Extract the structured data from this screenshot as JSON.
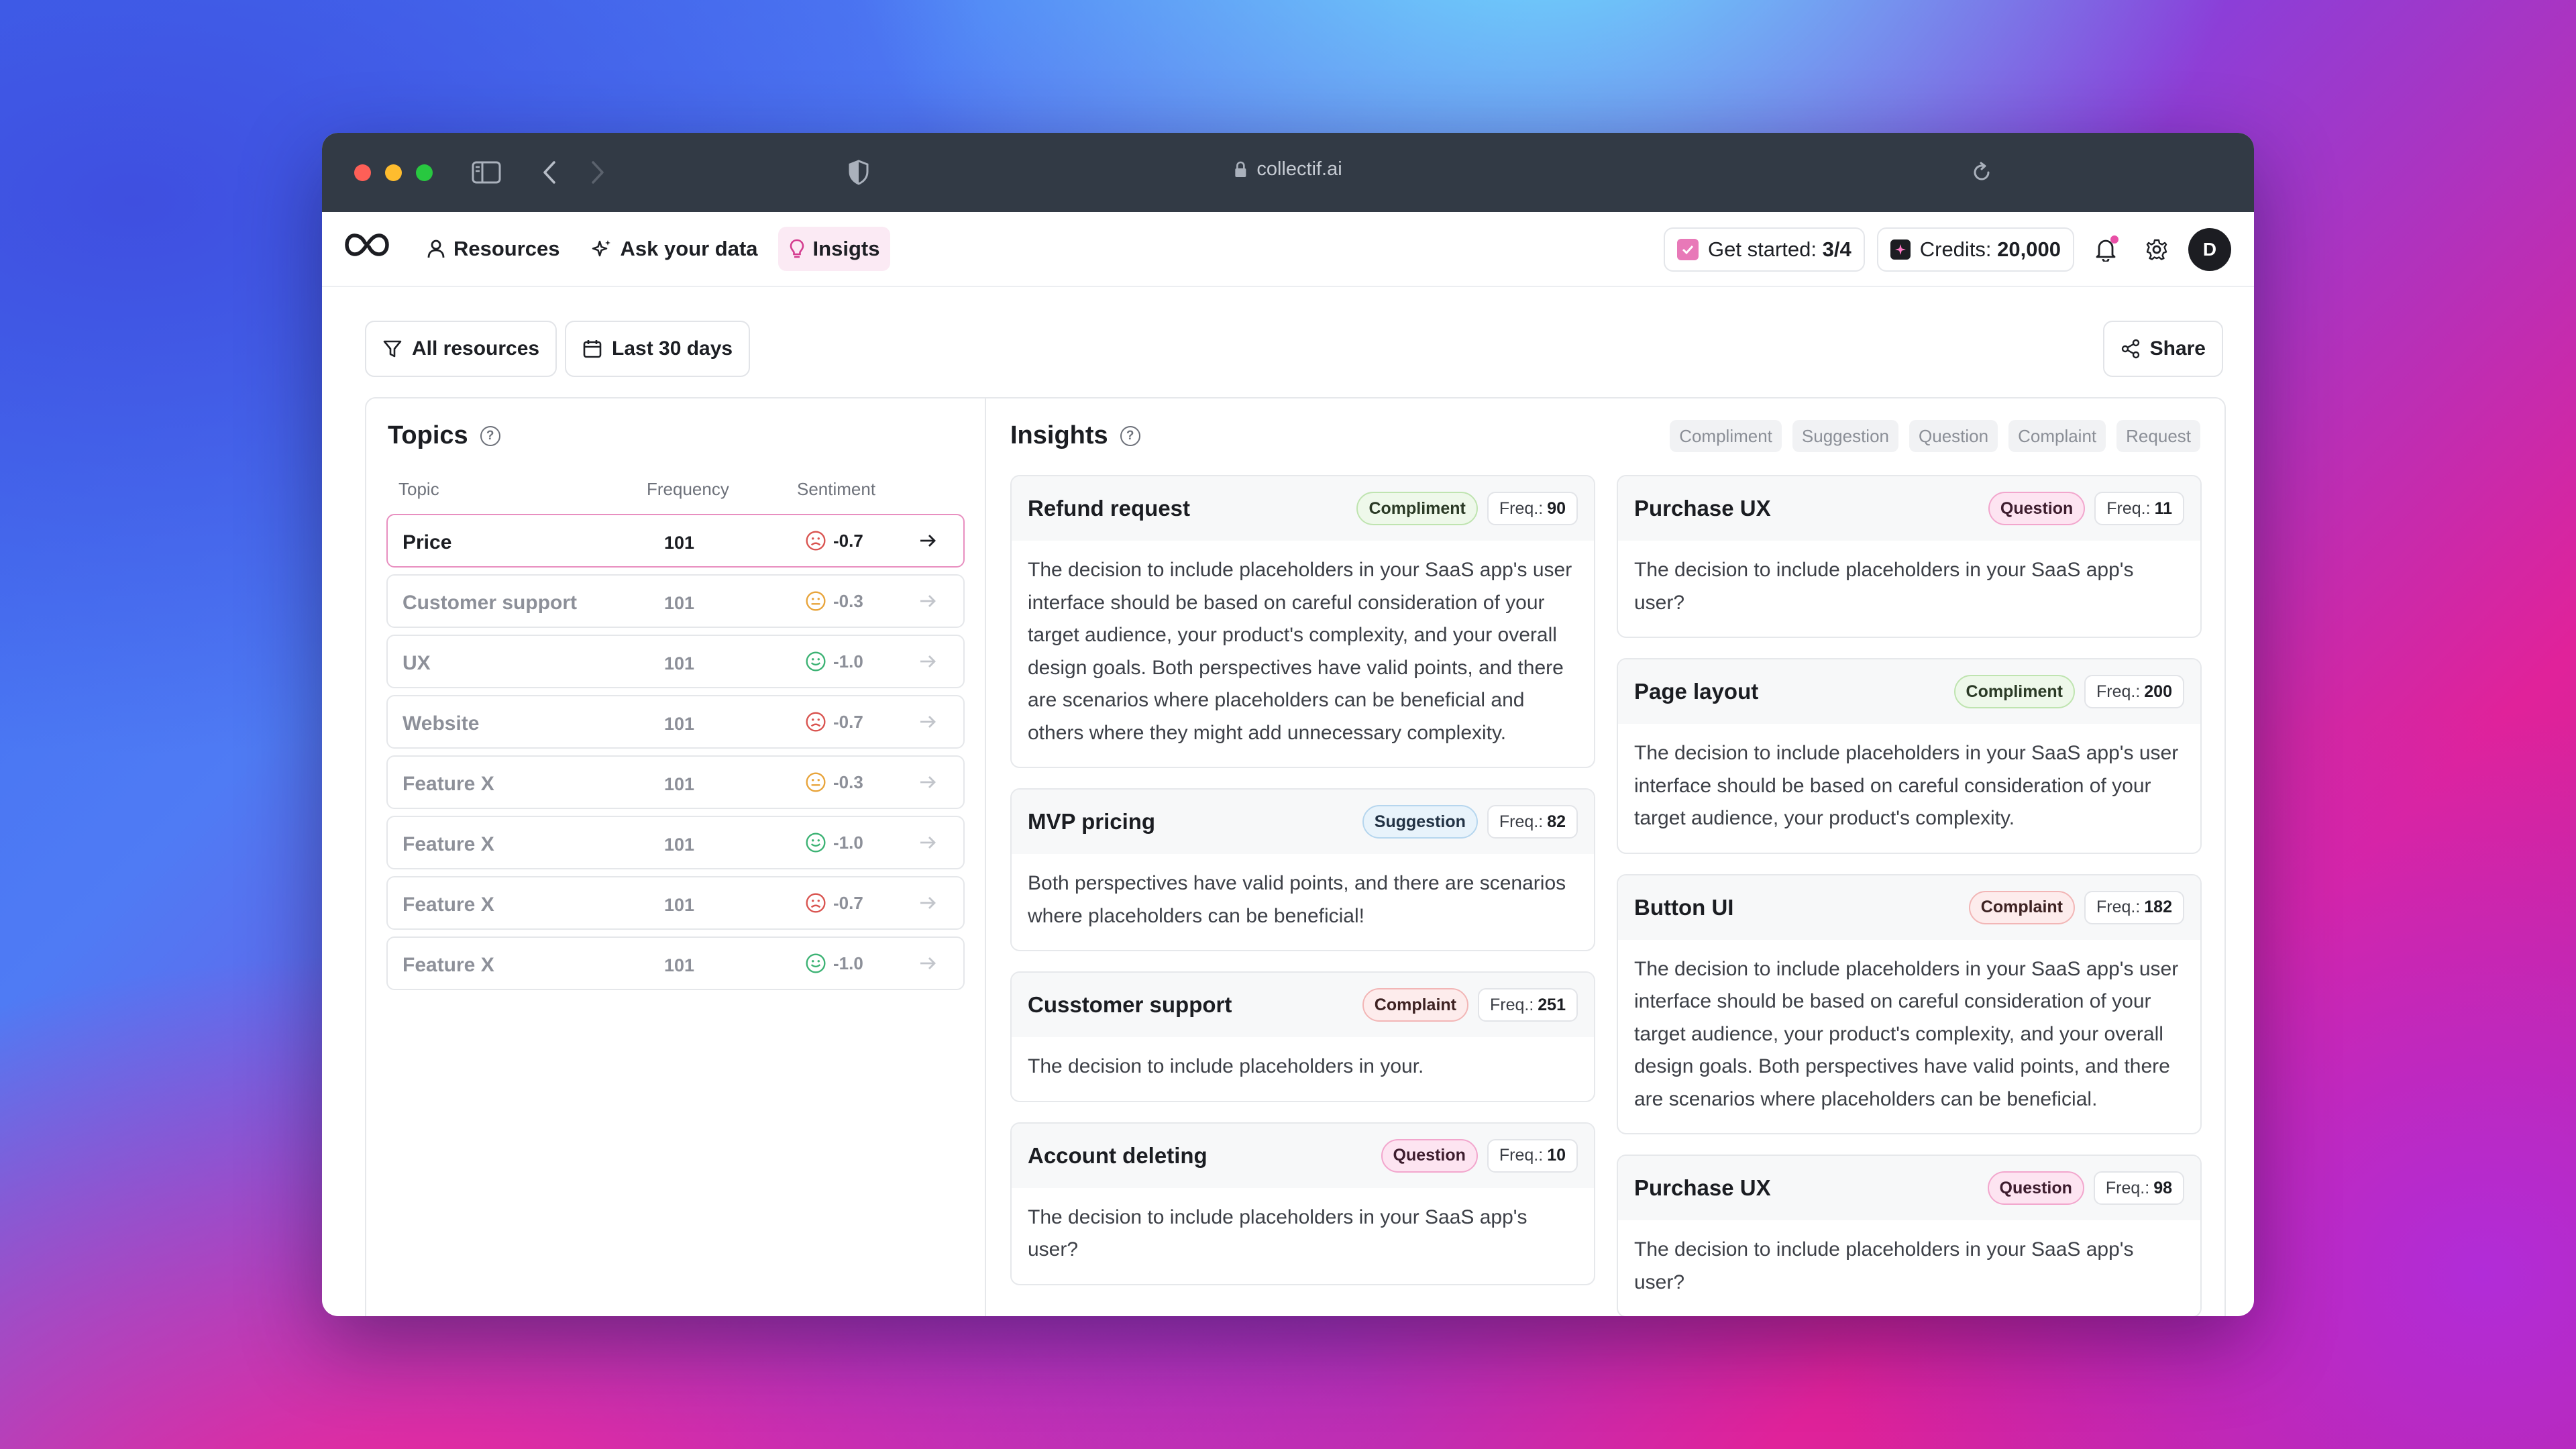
{
  "browser": {
    "url": "collectif.ai"
  },
  "nav": {
    "items": [
      {
        "label": "Resources",
        "icon": "user-icon"
      },
      {
        "label": "Ask your data",
        "icon": "sparkle-icon"
      },
      {
        "label": "Insigts",
        "icon": "lightbulb-icon",
        "active": true
      }
    ]
  },
  "header": {
    "get_started_label": "Get started:",
    "get_started_value": "3/4",
    "credits_label": "Credits:",
    "credits_value": "20,000",
    "avatar_initial": "D"
  },
  "toolbar": {
    "resources_filter": "All resources",
    "date_filter": "Last 30 days",
    "share_label": "Share"
  },
  "topics": {
    "title": "Topics",
    "columns": [
      "Topic",
      "Frequency",
      "Sentiment"
    ],
    "rows": [
      {
        "name": "Price",
        "frequency": "101",
        "sentiment": "-0.7",
        "mood": "negative",
        "selected": true
      },
      {
        "name": "Customer support",
        "frequency": "101",
        "sentiment": "-0.3",
        "mood": "neutral"
      },
      {
        "name": "UX",
        "frequency": "101",
        "sentiment": "-1.0",
        "mood": "positive"
      },
      {
        "name": "Website",
        "frequency": "101",
        "sentiment": "-0.7",
        "mood": "negative"
      },
      {
        "name": "Feature X",
        "frequency": "101",
        "sentiment": "-0.3",
        "mood": "neutral"
      },
      {
        "name": "Feature X",
        "frequency": "101",
        "sentiment": "-1.0",
        "mood": "positive"
      },
      {
        "name": "Feature X",
        "frequency": "101",
        "sentiment": "-0.7",
        "mood": "negative"
      },
      {
        "name": "Feature X",
        "frequency": "101",
        "sentiment": "-1.0",
        "mood": "positive"
      }
    ]
  },
  "insights": {
    "title": "Insights",
    "filters": [
      "Compliment",
      "Suggestion",
      "Question",
      "Complaint",
      "Request"
    ],
    "freq_label": "Freq.:",
    "left": [
      {
        "title": "Refund request",
        "tag": "Compliment",
        "freq": "90",
        "text": "The decision to include placeholders in your SaaS app's user interface should be based on careful consideration of your target audience, your product's complexity, and your overall design goals. Both perspectives have valid points, and there are scenarios where placeholders can be beneficial and others where they might add unnecessary complexity."
      },
      {
        "title": "MVP pricing",
        "tag": "Suggestion",
        "freq": "82",
        "text": "Both perspectives have valid points, and there are scenarios where placeholders can be beneficial!"
      },
      {
        "title": "Cusstomer support",
        "tag": "Complaint",
        "freq": "251",
        "text": "The decision to include placeholders in your."
      },
      {
        "title": "Account deleting",
        "tag": "Question",
        "freq": "10",
        "text": "The decision to include placeholders in your SaaS app's user?"
      }
    ],
    "right": [
      {
        "title": "Purchase UX",
        "tag": "Question",
        "freq": "11",
        "text": "The decision to include placeholders in your SaaS app's user?"
      },
      {
        "title": "Page layout",
        "tag": "Compliment",
        "freq": "200",
        "text": "The decision to include placeholders in your SaaS app's user interface should be based on careful consideration of your target audience, your product's complexity."
      },
      {
        "title": "Button UI",
        "tag": "Complaint",
        "freq": "182",
        "text": "The decision to include placeholders in your SaaS app's user interface should be based on careful consideration of your target audience, your product's complexity, and your overall design goals. Both perspectives have valid points, and there are scenarios where placeholders can be beneficial."
      },
      {
        "title": "Purchase UX",
        "tag": "Question",
        "freq": "98",
        "text": "The decision to include placeholders in your SaaS app's user?"
      }
    ]
  },
  "colors": {
    "accent_pink": "#e88fc0",
    "negative": "#d9534f",
    "neutral": "#e8a43a",
    "positive": "#3bb273"
  }
}
